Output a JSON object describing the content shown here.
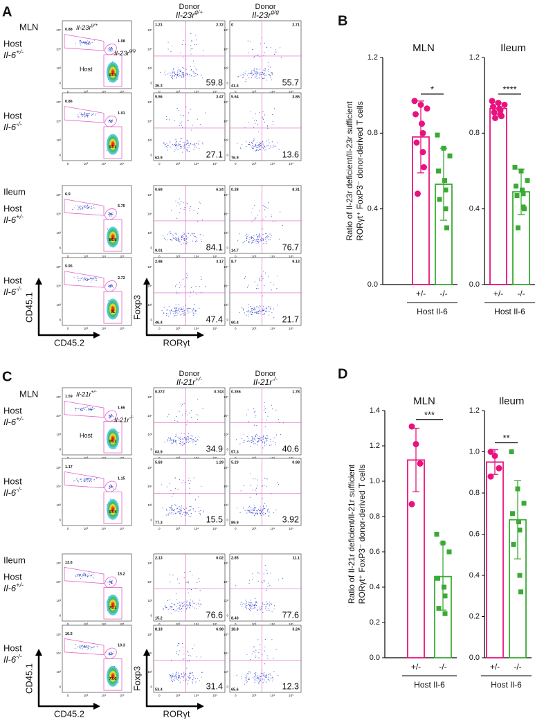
{
  "flow_ticks": [
    "0",
    "10³",
    "10⁴",
    "10⁵"
  ],
  "panel_a": {
    "letter": "A",
    "label_color": "#222222",
    "donors": [
      {
        "title": "Donor",
        "genotype": "Il-23r",
        "sup": "g/+",
        "color": "#e8127e"
      },
      {
        "title": "Donor",
        "genotype": "Il-23r",
        "sup": "g/g",
        "color": "#2a9a2a"
      }
    ],
    "host_gate": "Host",
    "rows": [
      {
        "tissue": "MLN",
        "host": "Host",
        "genotype": "Il-6",
        "sup": "+/-",
        "gating": [
          0.88,
          1.08,
          97.5
        ],
        "quadrants": [
          [
            1.21,
            2.72,
            36.3,
            59.8
          ],
          [
            0,
            2.71,
            41.4,
            55.7
          ]
        ]
      },
      {
        "host": "Host",
        "genotype": "Il-6",
        "sup": "-/-",
        "gating": [
          0.86,
          1.01,
          97.1
        ],
        "quadrants": [
          [
            5.56,
            3.47,
            63.9,
            27.1
          ],
          [
            5.64,
            3.86,
            76.9,
            13.6
          ]
        ]
      },
      {
        "tissue": "Ileum",
        "host": "Host",
        "genotype": "Il-6",
        "sup": "+/-",
        "gating": [
          6.9,
          5.75,
          86.8
        ],
        "quadrants": [
          [
            0.69,
            6.24,
            9.01,
            84.1
          ],
          [
            0.28,
            8.31,
            14.7,
            76.7
          ]
        ]
      },
      {
        "host": "Host",
        "genotype": "Il-6",
        "sup": "-/-",
        "gating": [
          5.95,
          2.72,
          91
        ],
        "quadrants": [
          [
            2.98,
            3.17,
            46.4,
            47.4
          ],
          [
            8.7,
            9.13,
            60.4,
            21.7
          ]
        ]
      }
    ],
    "axes": {
      "gate_y": "CD45.1",
      "gate_x": "CD45.2",
      "quad_y": "Foxp3",
      "quad_x": "RORγt"
    }
  },
  "panel_c": {
    "letter": "C",
    "label_color": "#d21fc8",
    "donors": [
      {
        "title": "Donor",
        "genotype": "Il-21r",
        "sup": "+/-",
        "color": "#e8127e"
      },
      {
        "title": "Donor",
        "genotype": "Il-21r",
        "sup": "-/-",
        "color": "#2a9a2a"
      }
    ],
    "host_gate": "Host",
    "rows": [
      {
        "tissue": "MLN",
        "host": "Host",
        "genotype": "Il-6",
        "sup": "+/-",
        "gating": [
          1.59,
          1.66,
          95.1
        ],
        "quadrants": [
          [
            0.372,
            0.743,
            63.9,
            34.9
          ],
          [
            0.356,
            1.78,
            57.3,
            40.6
          ]
        ]
      },
      {
        "host": "Host",
        "genotype": "Il-6",
        "sup": "-/-",
        "gating": [
          1.17,
          1.15,
          97.4
        ],
        "quadrants": [
          [
            5.83,
            1.29,
            77.3,
            15.5
          ],
          [
            5.23,
            0.98,
            89.9,
            3.92
          ]
        ]
      },
      {
        "tissue": "Ileum",
        "host": "Host",
        "genotype": "Il-6",
        "sup": "+/-",
        "gating": [
          13.6,
          15.2,
          70.1
        ],
        "quadrants": [
          [
            2.13,
            6.02,
            15.2,
            76.6
          ],
          [
            2.85,
            11.1,
            8.43,
            77.6
          ]
        ]
      },
      {
        "host": "Host",
        "genotype": "Il-6",
        "sup": "-/-",
        "gating": [
          10.5,
          10.3,
          77.6
        ],
        "quadrants": [
          [
            8.19,
            6.98,
            53.4,
            31.4
          ],
          [
            18.8,
            3.24,
            65.6,
            12.3
          ]
        ]
      }
    ],
    "axes": {
      "gate_y": "CD45.1",
      "gate_x": "CD45.2",
      "quad_y": "Foxp3",
      "quad_x": "RORγt"
    }
  },
  "chart_data": [
    {
      "type": "bar",
      "panel": "B",
      "title": "MLN",
      "ylabel": [
        "Ratio of Il-23r deficient/Il-23r sufficient",
        "RORγt⁺ FoxP3⁻ donor-derived T cells"
      ],
      "categories": [
        "+/-",
        "-/-"
      ],
      "xlabel": "Host Il-6",
      "colors": [
        "#e8127e",
        "#3aaa35"
      ],
      "markers": [
        "circle",
        "square"
      ],
      "values": [
        0.78,
        0.53
      ],
      "errors": [
        0.19,
        0.19
      ],
      "points": [
        [
          0.97,
          0.95,
          0.93,
          0.9,
          0.85,
          0.8,
          0.75,
          0.7,
          0.62,
          0.48
        ],
        [
          0.79,
          0.72,
          0.68,
          0.6,
          0.55,
          0.5,
          0.45,
          0.4,
          0.3
        ]
      ],
      "significance": "*",
      "ylim": [
        0,
        1.2
      ],
      "yticks": [
        {
          "value": 0,
          "label": "0.0"
        },
        0.4,
        0.8,
        1.2
      ]
    },
    {
      "type": "bar",
      "title": "Ileum",
      "categories": [
        "+/-",
        "-/-"
      ],
      "xlabel": "Host Il-6",
      "colors": [
        "#e8127e",
        "#3aaa35"
      ],
      "markers": [
        "circle",
        "square"
      ],
      "values": [
        0.93,
        0.49
      ],
      "errors": [
        0.03,
        0.12
      ],
      "points": [
        [
          0.97,
          0.96,
          0.95,
          0.94,
          0.93,
          0.92,
          0.91,
          0.9,
          0.89,
          0.88
        ],
        [
          0.62,
          0.6,
          0.55,
          0.52,
          0.5,
          0.48,
          0.47,
          0.41,
          0.4,
          0.3
        ]
      ],
      "significance": "****",
      "ylim": [
        0,
        1.2
      ],
      "yticks": [
        {
          "value": 0,
          "label": "0.0"
        },
        0.4,
        0.8,
        1.2
      ]
    },
    {
      "type": "bar",
      "panel": "D",
      "title": "MLN",
      "ylabel": [
        "Ratio of Il-21r deficient/Il-21r sufficient",
        "RORγt⁺ FoxP3⁻ donor-derived T cells"
      ],
      "categories": [
        "+/-",
        "-/-"
      ],
      "xlabel": "Host Il-6",
      "colors": [
        "#e8127e",
        "#3aaa35"
      ],
      "markers": [
        "circle",
        "square"
      ],
      "values": [
        1.12,
        0.46
      ],
      "errors": [
        0.18,
        0.19
      ],
      "points": [
        [
          1.31,
          1.21,
          1.1,
          0.87
        ],
        [
          0.7,
          0.65,
          0.6,
          0.45,
          0.4,
          0.35,
          0.28,
          0.25
        ]
      ],
      "significance": "***",
      "ylim": [
        0,
        1.4
      ],
      "yticks": [
        {
          "value": 0,
          "label": "0.0"
        },
        0.2,
        0.4,
        0.6,
        0.8,
        {
          "value": 1,
          "label": "1.0"
        },
        1.2,
        1.4
      ]
    },
    {
      "type": "bar",
      "title": "Ileum",
      "categories": [
        "+/-",
        "-/-"
      ],
      "xlabel": "Host Il-6",
      "colors": [
        "#e8127e",
        "#3aaa35"
      ],
      "markers": [
        "circle",
        "square"
      ],
      "values": [
        0.95,
        0.67
      ],
      "errors": [
        0.06,
        0.19
      ],
      "points": [
        [
          1,
          0.98,
          0.92,
          0.88
        ],
        [
          1,
          0.82,
          0.75,
          0.7,
          0.66,
          0.62,
          0.55,
          0.4,
          0.32
        ]
      ],
      "significance": "**",
      "ylim": [
        0,
        1.2
      ],
      "yticks": [
        {
          "value": 0,
          "label": "0.0"
        },
        0.2,
        0.4,
        0.6,
        0.8,
        {
          "value": 1,
          "label": "1.0"
        },
        1.2
      ]
    }
  ]
}
